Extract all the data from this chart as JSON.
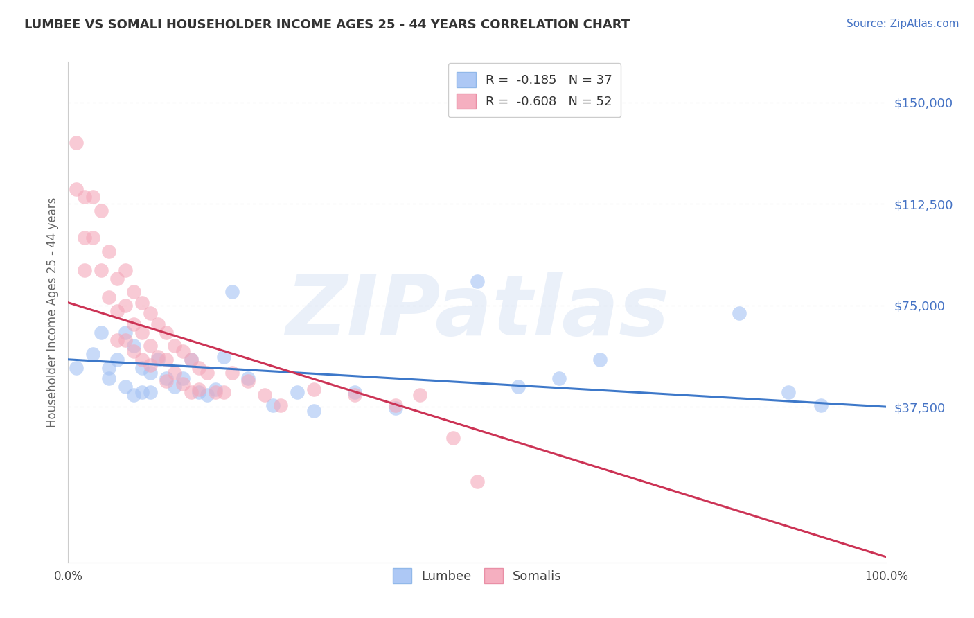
{
  "title": "LUMBEE VS SOMALI HOUSEHOLDER INCOME AGES 25 - 44 YEARS CORRELATION CHART",
  "source": "Source: ZipAtlas.com",
  "ylabel": "Householder Income Ages 25 - 44 years",
  "ytick_vals": [
    37500,
    75000,
    112500,
    150000
  ],
  "ytick_labels": [
    "$37,500",
    "$75,000",
    "$112,500",
    "$150,000"
  ],
  "xlim": [
    0.0,
    1.0
  ],
  "ylim": [
    -20000,
    165000
  ],
  "lumbee_R": -0.185,
  "lumbee_N": 37,
  "somali_R": -0.608,
  "somali_N": 52,
  "lumbee_dot_color": "#a4c2f4",
  "somali_dot_color": "#f4a7b9",
  "lumbee_line_color": "#3d78c9",
  "somali_line_color": "#cc3355",
  "tick_label_color": "#4472c4",
  "watermark_text": "ZIPatlas",
  "lumbee_line_x0": 0.0,
  "lumbee_line_y0": 55000,
  "lumbee_line_x1": 1.0,
  "lumbee_line_y1": 37500,
  "somali_line_x0": 0.0,
  "somali_line_y0": 76000,
  "somali_line_x1": 1.0,
  "somali_line_y1": -18000,
  "lumbee_scatter_x": [
    0.01,
    0.03,
    0.04,
    0.05,
    0.05,
    0.06,
    0.07,
    0.07,
    0.08,
    0.08,
    0.09,
    0.09,
    0.1,
    0.1,
    0.11,
    0.12,
    0.13,
    0.14,
    0.15,
    0.16,
    0.17,
    0.18,
    0.19,
    0.2,
    0.22,
    0.25,
    0.28,
    0.3,
    0.35,
    0.4,
    0.5,
    0.55,
    0.6,
    0.65,
    0.82,
    0.88,
    0.92
  ],
  "lumbee_scatter_y": [
    52000,
    57000,
    65000,
    52000,
    48000,
    55000,
    65000,
    45000,
    60000,
    42000,
    52000,
    43000,
    50000,
    43000,
    55000,
    48000,
    45000,
    48000,
    55000,
    43000,
    42000,
    44000,
    56000,
    80000,
    48000,
    38000,
    43000,
    36000,
    43000,
    37000,
    84000,
    45000,
    48000,
    55000,
    72000,
    43000,
    38000
  ],
  "somali_scatter_x": [
    0.01,
    0.01,
    0.02,
    0.02,
    0.02,
    0.03,
    0.03,
    0.04,
    0.04,
    0.05,
    0.05,
    0.06,
    0.06,
    0.06,
    0.07,
    0.07,
    0.07,
    0.08,
    0.08,
    0.08,
    0.09,
    0.09,
    0.09,
    0.1,
    0.1,
    0.1,
    0.11,
    0.11,
    0.12,
    0.12,
    0.12,
    0.13,
    0.13,
    0.14,
    0.14,
    0.15,
    0.15,
    0.16,
    0.16,
    0.17,
    0.18,
    0.19,
    0.2,
    0.22,
    0.24,
    0.26,
    0.3,
    0.35,
    0.4,
    0.43,
    0.47,
    0.5
  ],
  "somali_scatter_y": [
    135000,
    118000,
    115000,
    100000,
    88000,
    115000,
    100000,
    110000,
    88000,
    95000,
    78000,
    85000,
    73000,
    62000,
    88000,
    75000,
    62000,
    80000,
    68000,
    58000,
    76000,
    65000,
    55000,
    72000,
    60000,
    53000,
    68000,
    56000,
    65000,
    55000,
    47000,
    60000,
    50000,
    58000,
    46000,
    55000,
    43000,
    52000,
    44000,
    50000,
    43000,
    43000,
    50000,
    47000,
    42000,
    38000,
    44000,
    42000,
    38000,
    42000,
    26000,
    10000
  ]
}
